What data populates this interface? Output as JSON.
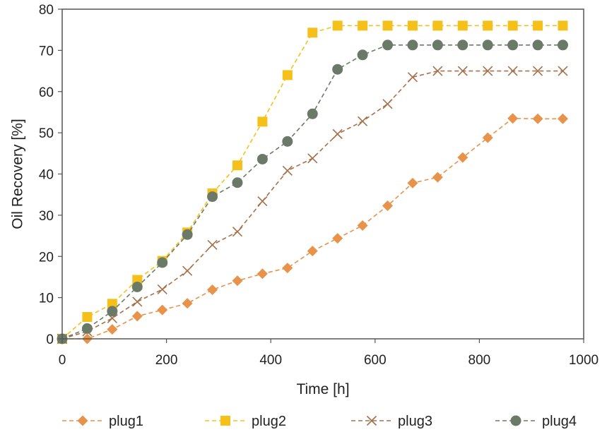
{
  "chart_data": {
    "type": "line",
    "xlabel": "Time [h]",
    "ylabel": "Oil Recovery [%]",
    "xlim": [
      0,
      1000
    ],
    "ylim": [
      0,
      80
    ],
    "xticks": [
      0,
      200,
      400,
      600,
      800,
      1000
    ],
    "yticks": [
      0,
      10,
      20,
      30,
      40,
      50,
      60,
      70,
      80
    ],
    "grid": false,
    "legend_position": "bottom",
    "series": [
      {
        "name": "plug1",
        "color": "#e8924a",
        "marker": "diamond",
        "x": [
          0,
          48,
          96,
          144,
          192,
          240,
          288,
          336,
          384,
          432,
          480,
          528,
          576,
          624,
          672,
          720,
          768,
          816,
          864,
          912,
          960
        ],
        "y": [
          0,
          0,
          2.3,
          5.5,
          7,
          8.6,
          11.9,
          14.1,
          15.8,
          17.2,
          21.3,
          24.4,
          27.5,
          32.3,
          37.8,
          39.2,
          44,
          48.8,
          53.5,
          53.4,
          53.4
        ]
      },
      {
        "name": "plug2",
        "color": "#f5c01a",
        "marker": "square",
        "x": [
          0,
          48,
          96,
          144,
          192,
          240,
          288,
          336,
          384,
          432,
          480,
          528,
          576,
          624,
          672,
          720,
          768,
          816,
          864,
          912,
          960
        ],
        "y": [
          0,
          5.3,
          8.5,
          14.3,
          18.9,
          25.8,
          35.3,
          42.1,
          52.7,
          64,
          74.3,
          76,
          76,
          76,
          76,
          76,
          76,
          76,
          76,
          76,
          76
        ]
      },
      {
        "name": "plug3",
        "color": "#a5704a",
        "marker": "x",
        "x": [
          0,
          48,
          96,
          144,
          192,
          240,
          288,
          336,
          384,
          432,
          480,
          528,
          576,
          624,
          672,
          720,
          768,
          816,
          864,
          912,
          960
        ],
        "y": [
          0,
          1.8,
          5,
          9,
          12,
          16.5,
          22.8,
          26,
          33.4,
          40.8,
          43.8,
          49.7,
          52.8,
          57,
          63.5,
          65,
          65,
          65,
          65,
          65,
          65
        ]
      },
      {
        "name": "plug4",
        "color": "#6b7a68",
        "marker": "circle",
        "x": [
          0,
          48,
          96,
          144,
          192,
          240,
          288,
          336,
          384,
          432,
          480,
          528,
          576,
          624,
          672,
          720,
          768,
          816,
          864,
          912,
          960
        ],
        "y": [
          0,
          2.5,
          6.7,
          12.6,
          18.5,
          25.3,
          34.5,
          37.9,
          43.6,
          47.9,
          54.6,
          65.4,
          68.9,
          71.3,
          71.3,
          71.3,
          71.3,
          71.3,
          71.3,
          71.3,
          71.3
        ]
      }
    ]
  }
}
